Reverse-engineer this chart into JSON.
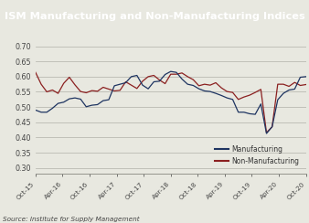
{
  "title": "ISM Manufacturing and Non-Manufacturing Indices",
  "title_bg": "#1e3461",
  "title_color": "#ffffff",
  "source": "Source: Institute for Supply Management",
  "ylabel_ticks": [
    0.3,
    0.35,
    0.4,
    0.45,
    0.5,
    0.55,
    0.6,
    0.65,
    0.7
  ],
  "xtick_labels": [
    "Oct-15",
    "Apr-16",
    "Oct-16",
    "Apr-17",
    "Oct-17",
    "Apr-18",
    "Oct-18",
    "Apr-19",
    "Oct-19",
    "Apr-20",
    "Oct-20"
  ],
  "mfg_color": "#1e3461",
  "non_mfg_color": "#8b2020",
  "manufacturing": [
    0.49,
    0.483,
    0.483,
    0.496,
    0.512,
    0.516,
    0.527,
    0.53,
    0.526,
    0.501,
    0.506,
    0.508,
    0.521,
    0.524,
    0.57,
    0.575,
    0.58,
    0.6,
    0.604,
    0.572,
    0.56,
    0.583,
    0.585,
    0.607,
    0.617,
    0.614,
    0.592,
    0.575,
    0.571,
    0.56,
    0.553,
    0.551,
    0.545,
    0.538,
    0.53,
    0.525,
    0.483,
    0.483,
    0.478,
    0.476,
    0.51,
    0.413,
    0.435,
    0.524,
    0.545,
    0.556,
    0.559,
    0.598,
    0.6
  ],
  "non_manufacturing": [
    0.614,
    0.575,
    0.55,
    0.556,
    0.545,
    0.578,
    0.598,
    0.573,
    0.551,
    0.547,
    0.554,
    0.552,
    0.565,
    0.559,
    0.553,
    0.555,
    0.583,
    0.572,
    0.561,
    0.585,
    0.6,
    0.604,
    0.589,
    0.577,
    0.608,
    0.608,
    0.612,
    0.6,
    0.59,
    0.57,
    0.575,
    0.572,
    0.58,
    0.563,
    0.551,
    0.548,
    0.525,
    0.533,
    0.539,
    0.548,
    0.558,
    0.416,
    0.435,
    0.575,
    0.575,
    0.568,
    0.581,
    0.571,
    0.574
  ],
  "ylim": [
    0.28,
    0.72
  ],
  "bg_color": "#e8e8e0",
  "plot_bg": "#e8e8e0"
}
